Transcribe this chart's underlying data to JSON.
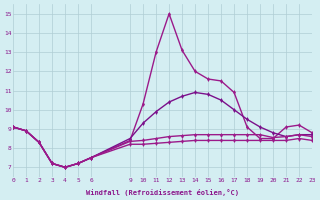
{
  "x_ticks": [
    0,
    1,
    2,
    3,
    4,
    5,
    6,
    9,
    10,
    11,
    12,
    13,
    14,
    15,
    16,
    17,
    18,
    19,
    20,
    21,
    22,
    23
  ],
  "curves": [
    {
      "x": [
        0,
        1,
        2,
        3,
        4,
        5,
        6,
        9,
        10,
        11,
        12,
        13,
        14,
        15,
        16,
        17,
        18,
        19,
        20,
        21,
        22,
        23
      ],
      "y": [
        9.1,
        8.9,
        8.3,
        7.2,
        7.0,
        7.2,
        7.5,
        8.4,
        10.3,
        13.0,
        15.0,
        13.1,
        12.0,
        11.6,
        11.5,
        10.9,
        9.1,
        8.5,
        8.5,
        9.1,
        9.2,
        8.8
      ],
      "color": "#9B1A8A"
    },
    {
      "x": [
        0,
        1,
        2,
        3,
        4,
        5,
        6,
        9,
        10,
        11,
        12,
        13,
        14,
        15,
        16,
        17,
        18,
        19,
        20,
        21,
        22,
        23
      ],
      "y": [
        9.1,
        8.9,
        8.3,
        7.2,
        7.0,
        7.2,
        7.5,
        8.5,
        9.3,
        9.9,
        10.4,
        10.7,
        10.9,
        10.8,
        10.5,
        10.0,
        9.5,
        9.1,
        8.8,
        8.6,
        8.7,
        8.7
      ],
      "color": "#7B108B"
    },
    {
      "x": [
        0,
        1,
        2,
        3,
        4,
        5,
        6,
        9,
        10,
        11,
        12,
        13,
        14,
        15,
        16,
        17,
        18,
        19,
        20,
        21,
        22,
        23
      ],
      "y": [
        9.1,
        8.9,
        8.3,
        7.2,
        7.0,
        7.2,
        7.5,
        8.35,
        8.4,
        8.5,
        8.6,
        8.65,
        8.7,
        8.7,
        8.7,
        8.7,
        8.7,
        8.7,
        8.55,
        8.6,
        8.7,
        8.6
      ],
      "color": "#9B1A8A"
    },
    {
      "x": [
        0,
        1,
        2,
        3,
        4,
        5,
        6,
        9,
        10,
        11,
        12,
        13,
        14,
        15,
        16,
        17,
        18,
        19,
        20,
        21,
        22,
        23
      ],
      "y": [
        9.1,
        8.9,
        8.3,
        7.2,
        7.0,
        7.2,
        7.5,
        8.2,
        8.2,
        8.25,
        8.3,
        8.35,
        8.4,
        8.4,
        8.4,
        8.4,
        8.4,
        8.4,
        8.4,
        8.4,
        8.5,
        8.4
      ],
      "color": "#9B1A8A"
    }
  ],
  "bg_color": "#D4EEF2",
  "grid_color": "#B0CDD4",
  "text_color": "#8B168B",
  "xlabel": "Windfall (Refroidissement éolien,°C)",
  "ylabel_vals": [
    7,
    8,
    9,
    10,
    11,
    12,
    13,
    14,
    15
  ],
  "ylim": [
    6.5,
    15.5
  ],
  "xlim": [
    0,
    23
  ]
}
